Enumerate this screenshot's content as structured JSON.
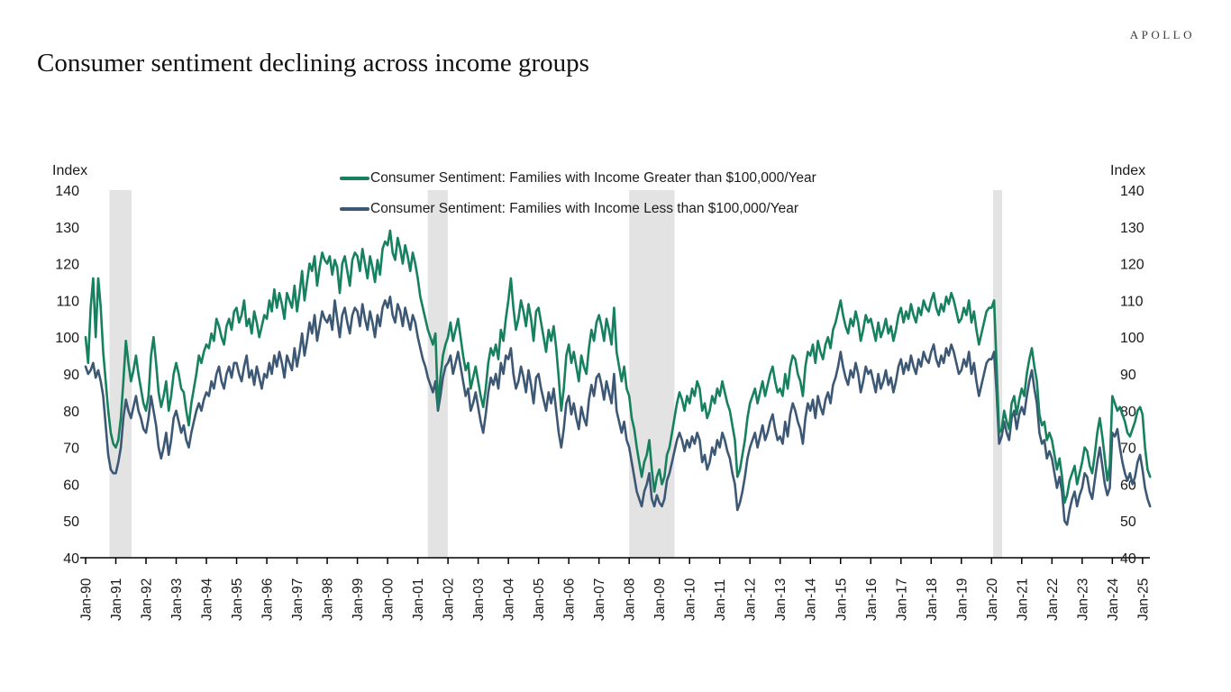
{
  "brand": {
    "logo_text": "APOLLO"
  },
  "page_title": "Consumer sentiment declining across income groups",
  "axes": {
    "left_unit_label": "Index",
    "right_unit_label": "Index"
  },
  "chart_data": {
    "type": "line",
    "title": "Consumer sentiment declining across income groups",
    "grid": false,
    "legend_position": "top-center",
    "y_axis": {
      "min": 40,
      "max": 140,
      "step": 10,
      "ticks": [
        40,
        50,
        60,
        70,
        80,
        90,
        100,
        110,
        120,
        130,
        140
      ]
    },
    "x_axis": {
      "tick_labels": [
        "Jan-90",
        "Jan-91",
        "Jan-92",
        "Jan-93",
        "Jan-94",
        "Jan-95",
        "Jan-96",
        "Jan-97",
        "Jan-98",
        "Jan-99",
        "Jan-00",
        "Jan-01",
        "Jan-02",
        "Jan-03",
        "Jan-04",
        "Jan-05",
        "Jan-06",
        "Jan-07",
        "Jan-08",
        "Jan-09",
        "Jan-10",
        "Jan-11",
        "Jan-12",
        "Jan-13",
        "Jan-14",
        "Jan-15",
        "Jan-16",
        "Jan-17",
        "Jan-18",
        "Jan-19",
        "Jan-20",
        "Jan-21",
        "Jan-22",
        "Jan-23",
        "Jan-24",
        "Jan-25"
      ]
    },
    "start_year": 1990,
    "frequency": "monthly",
    "recession_bands": [
      [
        1990.79,
        1991.52
      ],
      [
        2001.33,
        2001.99
      ],
      [
        2008.0,
        2009.5
      ],
      [
        2020.05,
        2020.35
      ]
    ],
    "recession_band_color": "#e3e3e3",
    "series": [
      {
        "name": "Consumer Sentiment: Families with Income Greater than $100,000/Year",
        "color": "#16805f",
        "values": [
          100,
          93,
          108,
          116,
          100,
          116,
          108,
          96,
          88,
          80,
          74,
          71,
          70,
          72,
          78,
          88,
          99,
          93,
          88,
          91,
          95,
          90,
          86,
          82,
          80,
          84,
          95,
          100,
          93,
          85,
          81,
          84,
          88,
          80,
          84,
          90,
          93,
          90,
          86,
          85,
          80,
          76,
          82,
          86,
          90,
          95,
          93,
          96,
          98,
          97,
          101,
          99,
          105,
          103,
          100,
          98,
          103,
          105,
          102,
          107,
          108,
          104,
          106,
          110,
          103,
          105,
          101,
          107,
          104,
          100,
          103,
          106,
          105,
          110,
          107,
          113,
          108,
          112,
          109,
          105,
          112,
          110,
          108,
          114,
          107,
          112,
          118,
          110,
          115,
          120,
          118,
          122,
          114,
          119,
          123,
          121,
          120,
          122,
          117,
          121,
          119,
          112,
          120,
          122,
          118,
          114,
          121,
          123,
          122,
          118,
          124,
          120,
          116,
          122,
          119,
          115,
          121,
          117,
          124,
          126,
          125,
          129,
          123,
          121,
          127,
          124,
          120,
          125,
          122,
          118,
          123,
          120,
          116,
          111,
          108,
          105,
          102,
          100,
          98,
          101,
          81,
          89,
          95,
          98,
          100,
          104,
          99,
          102,
          105,
          100,
          95,
          91,
          93,
          86,
          89,
          92,
          88,
          84,
          81,
          86,
          93,
          97,
          95,
          98,
          94,
          102,
          99,
          105,
          110,
          116,
          108,
          102,
          105,
          110,
          107,
          103,
          109,
          105,
          99,
          107,
          108,
          104,
          100,
          96,
          102,
          99,
          103,
          97,
          89,
          80,
          86,
          95,
          98,
          93,
          96,
          92,
          88,
          95,
          92,
          90,
          97,
          102,
          99,
          104,
          106,
          103,
          99,
          105,
          102,
          98,
          108,
          96,
          92,
          88,
          92,
          86,
          84,
          78,
          75,
          70,
          66,
          62,
          66,
          68,
          72,
          64,
          58,
          62,
          64,
          60,
          62,
          68,
          70,
          74,
          78,
          82,
          85,
          83,
          80,
          84,
          82,
          86,
          84,
          88,
          86,
          80,
          82,
          78,
          80,
          84,
          82,
          86,
          84,
          88,
          85,
          82,
          80,
          76,
          72,
          62,
          64,
          68,
          72,
          78,
          82,
          84,
          86,
          82,
          85,
          88,
          84,
          87,
          90,
          92,
          88,
          85,
          86,
          84,
          90,
          86,
          92,
          95,
          94,
          90,
          88,
          84,
          92,
          96,
          95,
          98,
          93,
          99,
          96,
          94,
          98,
          100,
          97,
          102,
          104,
          107,
          110,
          106,
          103,
          101,
          105,
          103,
          107,
          104,
          99,
          102,
          106,
          104,
          105,
          102,
          99,
          104,
          100,
          102,
          105,
          101,
          103,
          99,
          102,
          106,
          108,
          104,
          107,
          105,
          109,
          106,
          104,
          108,
          106,
          110,
          108,
          107,
          110,
          112,
          108,
          106,
          109,
          107,
          111,
          109,
          112,
          110,
          107,
          104,
          105,
          108,
          106,
          110,
          104,
          107,
          102,
          98,
          101,
          104,
          107,
          108,
          108,
          110,
          92,
          74,
          75,
          80,
          77,
          75,
          82,
          84,
          79,
          83,
          86,
          84,
          90,
          94,
          97,
          92,
          88,
          79,
          76,
          77,
          72,
          74,
          72,
          68,
          64,
          67,
          62,
          55,
          57,
          61,
          63,
          65,
          60,
          63,
          66,
          70,
          69,
          65,
          63,
          68,
          74,
          78,
          73,
          67,
          61,
          65,
          84,
          82,
          80,
          81,
          79,
          77,
          74,
          73,
          75,
          77,
          80,
          81,
          79,
          70,
          64,
          62
        ]
      },
      {
        "name": "Consumer Sentiment: Families with Income Less than $100,000/Year",
        "color": "#3d5874",
        "values": [
          92,
          90,
          91,
          93,
          89,
          91,
          88,
          84,
          76,
          68,
          64,
          63,
          63,
          66,
          70,
          78,
          83,
          80,
          78,
          81,
          84,
          80,
          78,
          75,
          74,
          78,
          84,
          80,
          76,
          70,
          67,
          70,
          74,
          68,
          72,
          78,
          80,
          77,
          74,
          76,
          72,
          70,
          74,
          77,
          80,
          82,
          80,
          83,
          85,
          84,
          88,
          86,
          90,
          92,
          88,
          86,
          90,
          92,
          89,
          93,
          93,
          90,
          88,
          92,
          95,
          89,
          91,
          87,
          92,
          89,
          86,
          90,
          89,
          93,
          90,
          95,
          92,
          96,
          93,
          89,
          95,
          93,
          91,
          97,
          92,
          96,
          101,
          95,
          99,
          104,
          101,
          106,
          99,
          103,
          107,
          105,
          104,
          106,
          102,
          110,
          105,
          100,
          106,
          108,
          104,
          101,
          106,
          108,
          107,
          103,
          109,
          105,
          102,
          107,
          104,
          100,
          106,
          103,
          108,
          110,
          108,
          111,
          106,
          104,
          109,
          107,
          103,
          108,
          105,
          102,
          106,
          104,
          100,
          97,
          94,
          92,
          89,
          87,
          85,
          88,
          80,
          84,
          89,
          92,
          93,
          95,
          90,
          93,
          96,
          92,
          88,
          84,
          86,
          80,
          82,
          85,
          81,
          77,
          74,
          79,
          85,
          89,
          87,
          90,
          86,
          93,
          90,
          95,
          94,
          97,
          90,
          86,
          88,
          92,
          89,
          85,
          91,
          87,
          82,
          89,
          90,
          86,
          83,
          80,
          85,
          82,
          86,
          80,
          74,
          70,
          75,
          82,
          84,
          79,
          82,
          78,
          75,
          81,
          78,
          76,
          83,
          87,
          84,
          89,
          90,
          87,
          83,
          88,
          85,
          82,
          90,
          80,
          77,
          74,
          77,
          72,
          70,
          66,
          62,
          58,
          56,
          54,
          58,
          60,
          63,
          56,
          54,
          57,
          55,
          54,
          56,
          61,
          63,
          66,
          69,
          72,
          74,
          72,
          69,
          72,
          70,
          73,
          71,
          74,
          72,
          66,
          68,
          64,
          66,
          70,
          68,
          72,
          70,
          74,
          72,
          69,
          67,
          63,
          60,
          53,
          55,
          58,
          62,
          67,
          70,
          72,
          74,
          70,
          73,
          76,
          72,
          74,
          77,
          79,
          75,
          72,
          73,
          71,
          77,
          73,
          79,
          82,
          80,
          77,
          75,
          71,
          78,
          82,
          80,
          83,
          78,
          84,
          81,
          79,
          83,
          85,
          82,
          87,
          89,
          92,
          96,
          92,
          89,
          87,
          91,
          89,
          93,
          90,
          85,
          88,
          92,
          90,
          91,
          88,
          85,
          90,
          86,
          88,
          91,
          87,
          89,
          85,
          88,
          92,
          94,
          90,
          93,
          91,
          95,
          92,
          90,
          94,
          92,
          96,
          94,
          93,
          96,
          98,
          94,
          92,
          95,
          93,
          97,
          95,
          98,
          96,
          93,
          90,
          91,
          94,
          92,
          96,
          90,
          93,
          88,
          84,
          87,
          90,
          93,
          94,
          94,
          96,
          85,
          71,
          73,
          77,
          74,
          72,
          78,
          80,
          75,
          79,
          81,
          79,
          84,
          88,
          91,
          86,
          82,
          74,
          71,
          72,
          67,
          69,
          67,
          63,
          59,
          62,
          58,
          50,
          49,
          53,
          56,
          58,
          54,
          57,
          59,
          63,
          62,
          58,
          56,
          61,
          66,
          70,
          65,
          60,
          57,
          59,
          74,
          73,
          75,
          70,
          66,
          63,
          61,
          63,
          60,
          62,
          66,
          68,
          64,
          59,
          56,
          54
        ]
      }
    ]
  }
}
